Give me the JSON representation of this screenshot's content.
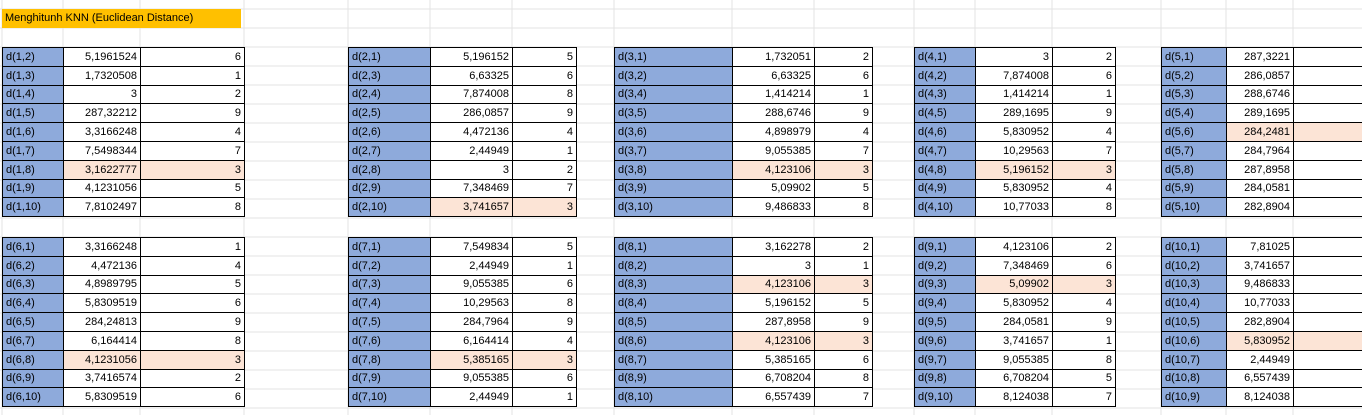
{
  "sheet": {
    "title": "Menghitunh KNN (Euclidean Distance)"
  },
  "colors": {
    "label_fill": "#8eaadb",
    "highlight_fill": "#fce4d6",
    "title_fill": "#ffc000"
  },
  "blocks": [
    {
      "rows": [
        {
          "label": "d(1,2)",
          "value": "5,1961524",
          "rank": "6"
        },
        {
          "label": "d(1,3)",
          "value": "1,7320508",
          "rank": "1"
        },
        {
          "label": "d(1,4)",
          "value": "3",
          "rank": "2"
        },
        {
          "label": "d(1,5)",
          "value": "287,32212",
          "rank": "9"
        },
        {
          "label": "d(1,6)",
          "value": "3,3166248",
          "rank": "4"
        },
        {
          "label": "d(1,7)",
          "value": "7,5498344",
          "rank": "7"
        },
        {
          "label": "d(1,8)",
          "value": "3,1622777",
          "rank": "3",
          "hl": true
        },
        {
          "label": "d(1,9)",
          "value": "4,1231056",
          "rank": "5"
        },
        {
          "label": "d(1,10)",
          "value": "7,8102497",
          "rank": "8"
        }
      ]
    },
    {
      "rows": [
        {
          "label": "d(2,1)",
          "value": "5,196152",
          "rank": "5"
        },
        {
          "label": "d(2,3)",
          "value": "6,63325",
          "rank": "6"
        },
        {
          "label": "d(2,4)",
          "value": "7,874008",
          "rank": "8"
        },
        {
          "label": "d(2,5)",
          "value": "286,0857",
          "rank": "9"
        },
        {
          "label": "d(2,6)",
          "value": "4,472136",
          "rank": "4"
        },
        {
          "label": "d(2,7)",
          "value": "2,44949",
          "rank": "1"
        },
        {
          "label": "d(2,8)",
          "value": "3",
          "rank": "2"
        },
        {
          "label": "d(2,9)",
          "value": "7,348469",
          "rank": "7"
        },
        {
          "label": "d(2,10)",
          "value": "3,741657",
          "rank": "3",
          "hl": true
        }
      ]
    },
    {
      "rows": [
        {
          "label": "d(3,1)",
          "value": "1,732051",
          "rank": "2"
        },
        {
          "label": "d(3,2)",
          "value": "6,63325",
          "rank": "6"
        },
        {
          "label": "d(3,4)",
          "value": "1,414214",
          "rank": "1"
        },
        {
          "label": "d(3,5)",
          "value": "288,6746",
          "rank": "9"
        },
        {
          "label": "d(3,6)",
          "value": "4,898979",
          "rank": "4"
        },
        {
          "label": "d(3,7)",
          "value": "9,055385",
          "rank": "7"
        },
        {
          "label": "d(3,8)",
          "value": "4,123106",
          "rank": "3",
          "hl": true
        },
        {
          "label": "d(3,9)",
          "value": "5,09902",
          "rank": "5"
        },
        {
          "label": "d(3,10)",
          "value": "9,486833",
          "rank": "8"
        }
      ]
    },
    {
      "rows": [
        {
          "label": "d(4,1)",
          "value": "3",
          "rank": "2"
        },
        {
          "label": "d(4,2)",
          "value": "7,874008",
          "rank": "6"
        },
        {
          "label": "d(4,3)",
          "value": "1,414214",
          "rank": "1"
        },
        {
          "label": "d(4,5)",
          "value": "289,1695",
          "rank": "9"
        },
        {
          "label": "d(4,6)",
          "value": "5,830952",
          "rank": "4"
        },
        {
          "label": "d(4,7)",
          "value": "10,29563",
          "rank": "7"
        },
        {
          "label": "d(4,8)",
          "value": "5,196152",
          "rank": "3",
          "hl": true
        },
        {
          "label": "d(4,9)",
          "value": "5,830952",
          "rank": "4"
        },
        {
          "label": "d(4,10)",
          "value": "10,77033",
          "rank": "8"
        }
      ]
    },
    {
      "rows": [
        {
          "label": "d(5,1)",
          "value": "287,3221",
          "rank": "6"
        },
        {
          "label": "d(5,2)",
          "value": "286,0857",
          "rank": "5"
        },
        {
          "label": "d(5,3)",
          "value": "288,6746",
          "rank": "8"
        },
        {
          "label": "d(5,4)",
          "value": "289,1695",
          "rank": "9"
        },
        {
          "label": "d(5,6)",
          "value": "284,2481",
          "rank": "3",
          "hl": true
        },
        {
          "label": "d(5,7)",
          "value": "284,7964",
          "rank": "4"
        },
        {
          "label": "d(5,8)",
          "value": "287,8958",
          "rank": "7"
        },
        {
          "label": "d(5,9)",
          "value": "284,0581",
          "rank": "2"
        },
        {
          "label": "d(5,10)",
          "value": "282,8904",
          "rank": "1"
        }
      ]
    },
    {
      "rows": [
        {
          "label": "d(6,1)",
          "value": "3,3166248",
          "rank": "1"
        },
        {
          "label": "d(6,2)",
          "value": "4,472136",
          "rank": "4"
        },
        {
          "label": "d(6,3)",
          "value": "4,8989795",
          "rank": "5"
        },
        {
          "label": "d(6,4)",
          "value": "5,8309519",
          "rank": "6"
        },
        {
          "label": "d(6,5)",
          "value": "284,24813",
          "rank": "9"
        },
        {
          "label": "d(6,7)",
          "value": "6,164414",
          "rank": "8"
        },
        {
          "label": "d(6,8)",
          "value": "4,1231056",
          "rank": "3",
          "hl": true
        },
        {
          "label": "d(6,9)",
          "value": "3,7416574",
          "rank": "2"
        },
        {
          "label": "d(6,10)",
          "value": "5,8309519",
          "rank": "6"
        }
      ]
    },
    {
      "rows": [
        {
          "label": "d(7,1)",
          "value": "7,549834",
          "rank": "5"
        },
        {
          "label": "d(7,2)",
          "value": "2,44949",
          "rank": "1"
        },
        {
          "label": "d(7,3)",
          "value": "9,055385",
          "rank": "6"
        },
        {
          "label": "d(7,4)",
          "value": "10,29563",
          "rank": "8"
        },
        {
          "label": "d(7,5)",
          "value": "284,7964",
          "rank": "9"
        },
        {
          "label": "d(7,6)",
          "value": "6,164414",
          "rank": "4"
        },
        {
          "label": "d(7,8)",
          "value": "5,385165",
          "rank": "3",
          "hl": true
        },
        {
          "label": "d(7,9)",
          "value": "9,055385",
          "rank": "6"
        },
        {
          "label": "d(7,10)",
          "value": "2,44949",
          "rank": "1"
        }
      ]
    },
    {
      "rows": [
        {
          "label": "d(8,1)",
          "value": "3,162278",
          "rank": "2"
        },
        {
          "label": "d(8,2)",
          "value": "3",
          "rank": "1"
        },
        {
          "label": "d(8,3)",
          "value": "4,123106",
          "rank": "3",
          "hl": true
        },
        {
          "label": "d(8,4)",
          "value": "5,196152",
          "rank": "5"
        },
        {
          "label": "d(8,5)",
          "value": "287,8958",
          "rank": "9"
        },
        {
          "label": "d(8,6)",
          "value": "4,123106",
          "rank": "3",
          "hl": true
        },
        {
          "label": "d(8,7)",
          "value": "5,385165",
          "rank": "6"
        },
        {
          "label": "d(8,9)",
          "value": "6,708204",
          "rank": "8"
        },
        {
          "label": "d(8,10)",
          "value": "6,557439",
          "rank": "7"
        }
      ]
    },
    {
      "rows": [
        {
          "label": "d(9,1)",
          "value": "4,123106",
          "rank": "2"
        },
        {
          "label": "d(9,2)",
          "value": "7,348469",
          "rank": "6"
        },
        {
          "label": "d(9,3)",
          "value": "5,09902",
          "rank": "3",
          "hl": true
        },
        {
          "label": "d(9,4)",
          "value": "5,830952",
          "rank": "4"
        },
        {
          "label": "d(9,5)",
          "value": "284,0581",
          "rank": "9"
        },
        {
          "label": "d(9,6)",
          "value": "3,741657",
          "rank": "1"
        },
        {
          "label": "d(9,7)",
          "value": "9,055385",
          "rank": "8"
        },
        {
          "label": "d(9,8)",
          "value": "6,708204",
          "rank": "5"
        },
        {
          "label": "d(9,10)",
          "value": "8,124038",
          "rank": "7"
        }
      ]
    },
    {
      "rows": [
        {
          "label": "d(10,1)",
          "value": "7,81025",
          "rank": "5"
        },
        {
          "label": "d(10,2)",
          "value": "3,741657",
          "rank": "2"
        },
        {
          "label": "d(10,3)",
          "value": "9,486833",
          "rank": "7"
        },
        {
          "label": "d(10,4)",
          "value": "10,77033",
          "rank": "8"
        },
        {
          "label": "d(10,5)",
          "value": "282,8904",
          "rank": "9"
        },
        {
          "label": "d(10,6)",
          "value": "5,830952",
          "rank": "3",
          "hl": true
        },
        {
          "label": "d(10,7)",
          "value": "2,44949",
          "rank": "1"
        },
        {
          "label": "d(10,8)",
          "value": "6,557439",
          "rank": "4"
        },
        {
          "label": "d(10,9)",
          "value": "8,124038",
          "rank": "6"
        }
      ]
    }
  ]
}
